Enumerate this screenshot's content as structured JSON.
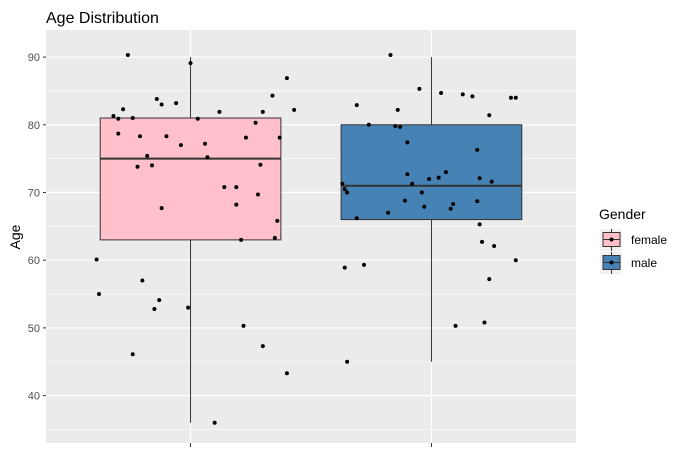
{
  "chart_data": {
    "type": "boxplot",
    "title": "Age Distribution",
    "xlabel": "",
    "ylabel": "Age",
    "ylim": [
      33,
      94
    ],
    "yticks": [
      40,
      50,
      60,
      70,
      80,
      90
    ],
    "grid": true,
    "legend": {
      "title": "Gender",
      "position": "right",
      "entries": [
        {
          "label": "female",
          "color": "#ffc0cb"
        },
        {
          "label": "male",
          "color": "#4682b4"
        }
      ]
    },
    "groups": [
      {
        "name": "female",
        "fill": "#ffc0cb",
        "stats": {
          "min": 36,
          "q1": 63,
          "median": 75,
          "q3": 81,
          "max": 90
        },
        "points": [
          {
            "x": 0.68,
            "y": 81.3
          },
          {
            "x": 0.7,
            "y": 78.7
          },
          {
            "x": 0.7,
            "y": 80.9
          },
          {
            "x": 0.72,
            "y": 82.3
          },
          {
            "x": 0.74,
            "y": 90.3
          },
          {
            "x": 0.76,
            "y": 81.0
          },
          {
            "x": 0.78,
            "y": 73.8
          },
          {
            "x": 0.79,
            "y": 78.3
          },
          {
            "x": 0.82,
            "y": 75.4
          },
          {
            "x": 0.84,
            "y": 74.0
          },
          {
            "x": 0.86,
            "y": 83.8
          },
          {
            "x": 0.88,
            "y": 83.0
          },
          {
            "x": 0.88,
            "y": 67.7
          },
          {
            "x": 0.9,
            "y": 78.3
          },
          {
            "x": 0.94,
            "y": 83.2
          },
          {
            "x": 0.96,
            "y": 77.0
          },
          {
            "x": 0.61,
            "y": 60.1
          },
          {
            "x": 0.62,
            "y": 55.0
          },
          {
            "x": 0.76,
            "y": 46.1
          },
          {
            "x": 0.8,
            "y": 57.0
          },
          {
            "x": 0.85,
            "y": 52.8
          },
          {
            "x": 0.87,
            "y": 54.1
          },
          {
            "x": 1.0,
            "y": 89.1
          },
          {
            "x": 0.99,
            "y": 53.0
          },
          {
            "x": 1.03,
            "y": 80.9
          },
          {
            "x": 1.06,
            "y": 77.2
          },
          {
            "x": 1.07,
            "y": 75.2
          },
          {
            "x": 1.1,
            "y": 36.0
          },
          {
            "x": 1.12,
            "y": 81.9
          },
          {
            "x": 1.14,
            "y": 70.8
          },
          {
            "x": 1.19,
            "y": 70.8
          },
          {
            "x": 1.19,
            "y": 68.2
          },
          {
            "x": 1.21,
            "y": 63.0
          },
          {
            "x": 1.22,
            "y": 50.3
          },
          {
            "x": 1.23,
            "y": 78.1
          },
          {
            "x": 1.27,
            "y": 80.3
          },
          {
            "x": 1.29,
            "y": 74.1
          },
          {
            "x": 1.28,
            "y": 69.7
          },
          {
            "x": 1.3,
            "y": 81.9
          },
          {
            "x": 1.3,
            "y": 47.3
          },
          {
            "x": 1.34,
            "y": 84.3
          },
          {
            "x": 1.35,
            "y": 63.3
          },
          {
            "x": 1.36,
            "y": 65.8
          },
          {
            "x": 1.37,
            "y": 78.1
          },
          {
            "x": 1.4,
            "y": 86.9
          },
          {
            "x": 1.4,
            "y": 43.3
          },
          {
            "x": 1.43,
            "y": 82.2
          }
        ]
      },
      {
        "name": "male",
        "fill": "#4682b4",
        "stats": {
          "min": 45,
          "q1": 66,
          "median": 71,
          "q3": 80,
          "max": 90
        },
        "points": [
          {
            "x": 1.63,
            "y": 71.3
          },
          {
            "x": 1.64,
            "y": 70.5
          },
          {
            "x": 1.65,
            "y": 70.0
          },
          {
            "x": 1.64,
            "y": 58.9
          },
          {
            "x": 1.65,
            "y": 45.0
          },
          {
            "x": 1.69,
            "y": 82.9
          },
          {
            "x": 1.69,
            "y": 66.2
          },
          {
            "x": 1.72,
            "y": 59.3
          },
          {
            "x": 1.74,
            "y": 80.0
          },
          {
            "x": 1.83,
            "y": 90.3
          },
          {
            "x": 1.82,
            "y": 67.0
          },
          {
            "x": 1.85,
            "y": 79.8
          },
          {
            "x": 1.86,
            "y": 82.2
          },
          {
            "x": 1.87,
            "y": 79.7
          },
          {
            "x": 1.89,
            "y": 68.8
          },
          {
            "x": 1.9,
            "y": 72.7
          },
          {
            "x": 1.9,
            "y": 77.4
          },
          {
            "x": 1.92,
            "y": 71.3
          },
          {
            "x": 1.95,
            "y": 85.3
          },
          {
            "x": 1.96,
            "y": 70.0
          },
          {
            "x": 1.97,
            "y": 67.9
          },
          {
            "x": 1.99,
            "y": 72.0
          },
          {
            "x": 2.03,
            "y": 72.2
          },
          {
            "x": 2.06,
            "y": 73.0
          },
          {
            "x": 2.04,
            "y": 84.7
          },
          {
            "x": 2.08,
            "y": 67.6
          },
          {
            "x": 2.09,
            "y": 68.3
          },
          {
            "x": 2.1,
            "y": 50.3
          },
          {
            "x": 2.13,
            "y": 84.5
          },
          {
            "x": 2.17,
            "y": 84.2
          },
          {
            "x": 2.19,
            "y": 76.3
          },
          {
            "x": 2.19,
            "y": 68.7
          },
          {
            "x": 2.2,
            "y": 72.1
          },
          {
            "x": 2.2,
            "y": 65.3
          },
          {
            "x": 2.21,
            "y": 62.7
          },
          {
            "x": 2.22,
            "y": 50.8
          },
          {
            "x": 2.24,
            "y": 81.4
          },
          {
            "x": 2.24,
            "y": 57.2
          },
          {
            "x": 2.26,
            "y": 62.1
          },
          {
            "x": 2.25,
            "y": 71.6
          },
          {
            "x": 2.33,
            "y": 84.0
          },
          {
            "x": 2.35,
            "y": 84.0
          },
          {
            "x": 2.35,
            "y": 60.0
          }
        ]
      }
    ]
  }
}
